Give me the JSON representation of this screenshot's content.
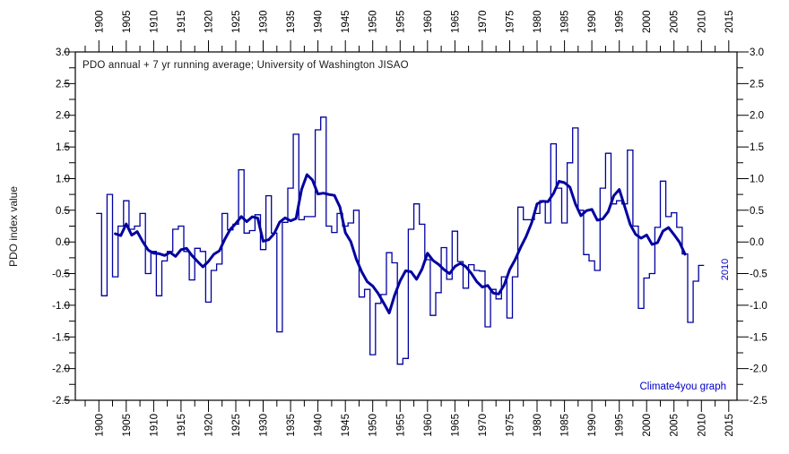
{
  "colors": {
    "line": "#0000A0",
    "annotation_blue": "#0000C8",
    "axis": "#000000",
    "background": "#FFFFFF",
    "title_text": "#1A1A1A"
  },
  "chart_data": {
    "type": "line",
    "title": "PDO annual + 7 yr running average; University of Washington JISAO",
    "ylabel": "PDO index value",
    "xlabel": "",
    "grid": false,
    "xlim": [
      1895.7,
      2016.5
    ],
    "ylim": [
      -2.5,
      3.0
    ],
    "x_ticks_major": [
      1900,
      1905,
      1910,
      1915,
      1920,
      1925,
      1930,
      1935,
      1940,
      1945,
      1950,
      1955,
      1960,
      1965,
      1970,
      1975,
      1980,
      1985,
      1990,
      1995,
      2000,
      2005,
      2010,
      2015
    ],
    "x_tick_minor_step": 2.5,
    "y_ticks_major": [
      3.0,
      2.5,
      2.0,
      1.5,
      1.0,
      0.5,
      0.0,
      -0.5,
      -1.0,
      -1.5,
      -2.0,
      -2.5
    ],
    "y_tick_minor_step": 0.25,
    "tick_labels_both_sides": true,
    "series": [
      {
        "name": "PDO annual",
        "style": "step",
        "year_start": 1900,
        "year_end": 2010,
        "values": [
          0.45,
          -0.85,
          0.75,
          -0.55,
          0.25,
          0.65,
          0.2,
          0.25,
          0.45,
          -0.5,
          -0.15,
          -0.85,
          -0.3,
          -0.15,
          0.2,
          0.25,
          -0.15,
          -0.6,
          -0.1,
          -0.15,
          -0.95,
          -0.45,
          -0.35,
          0.45,
          0.19,
          0.28,
          1.14,
          0.14,
          0.18,
          0.43,
          -0.12,
          0.73,
          0.14,
          -1.42,
          0.31,
          0.85,
          1.7,
          0.35,
          0.4,
          0.4,
          1.77,
          1.97,
          0.25,
          0.15,
          0.45,
          0.25,
          0.3,
          0.5,
          -0.87,
          -0.75,
          -1.78,
          -0.97,
          -0.83,
          -0.17,
          -0.33,
          -1.93,
          -1.84,
          0.2,
          0.6,
          0.28,
          -0.28,
          -1.16,
          -0.8,
          -0.09,
          -0.59,
          0.17,
          -0.31,
          -0.73,
          -0.36,
          -0.45,
          -0.46,
          -1.34,
          -0.75,
          -0.9,
          -0.55,
          -1.2,
          -0.55,
          0.55,
          0.35,
          0.35,
          0.45,
          0.65,
          0.3,
          1.55,
          0.85,
          0.3,
          1.25,
          1.8,
          0.5,
          -0.2,
          -0.3,
          -0.45,
          0.85,
          1.4,
          0.6,
          0.65,
          0.6,
          1.45,
          0.25,
          -1.05,
          -0.57,
          -0.5,
          0.23,
          0.96,
          0.4,
          0.46,
          0.23,
          -0.19,
          -1.27,
          -0.62,
          -0.37
        ]
      },
      {
        "name": "7 yr running average",
        "style": "line",
        "derived_from": "centered 7-year running mean of PDO annual series",
        "window": 7
      }
    ],
    "annotations": [
      {
        "text": "2010",
        "rotated": true,
        "meaning": "last year of annual series",
        "position": "right-of-line-end"
      },
      {
        "text": "Climate4you graph",
        "position": "bottom-right-inside-plot"
      }
    ]
  }
}
